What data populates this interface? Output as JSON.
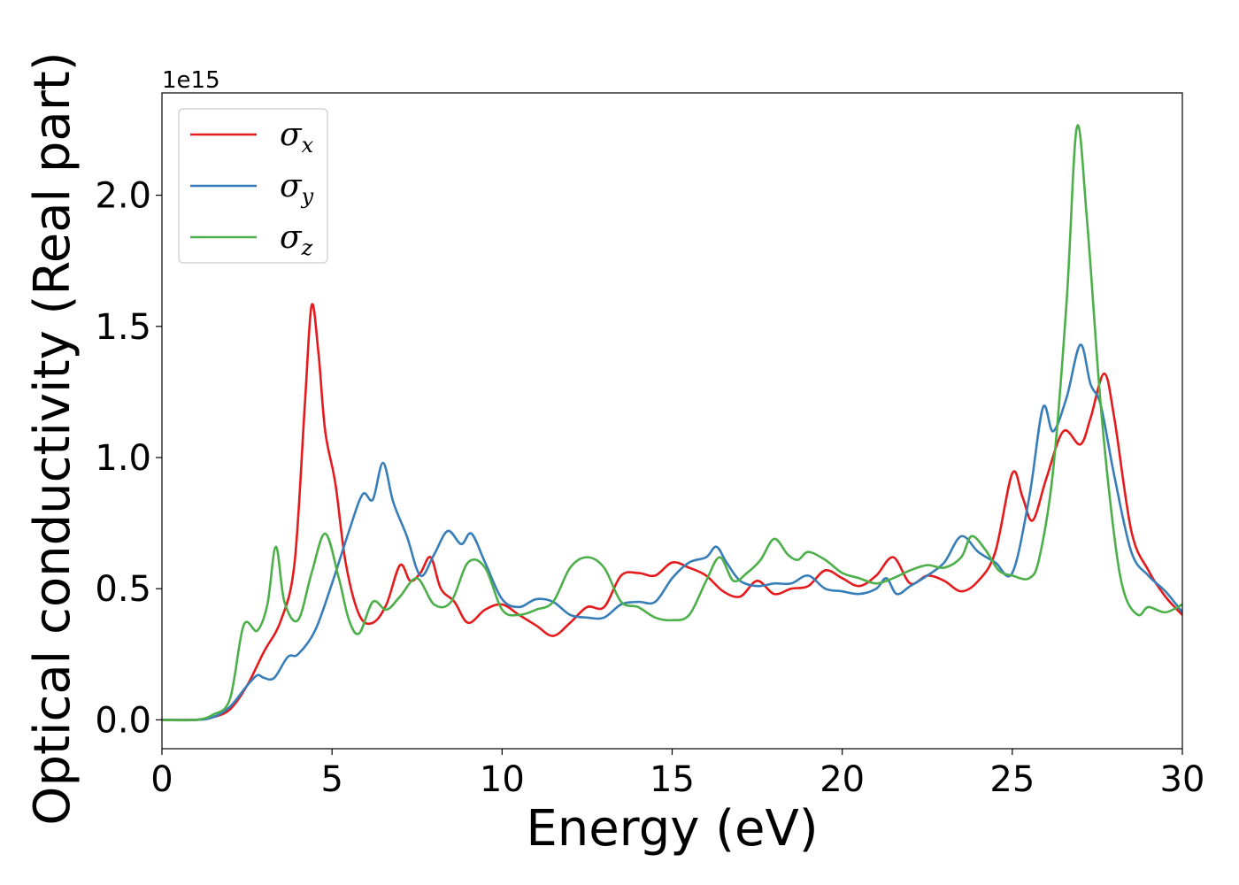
{
  "chart_data": {
    "type": "line",
    "title": "",
    "xlabel": "Energy (eV)",
    "ylabel": "Optical conductivity (Real part)",
    "y_offset_label": "1e15",
    "xlim": [
      0,
      30
    ],
    "ylim": [
      -0.11,
      2.39
    ],
    "x_ticks": [
      0,
      5,
      10,
      15,
      20,
      25,
      30
    ],
    "x_tick_labels": [
      "0",
      "5",
      "10",
      "15",
      "20",
      "25",
      "30"
    ],
    "y_ticks": [
      0.0,
      0.5,
      1.0,
      1.5,
      2.0
    ],
    "y_tick_labels": [
      "0.0",
      "0.5",
      "1.0",
      "1.5",
      "2.0"
    ],
    "grid": false,
    "legend_position": "top-left",
    "series": [
      {
        "name": "σx",
        "legend_base": "σ",
        "legend_sub": "x",
        "color": "#e41a1c",
        "points": [
          [
            0,
            0
          ],
          [
            1,
            0
          ],
          [
            1.5,
            0.01
          ],
          [
            2,
            0.04
          ],
          [
            2.5,
            0.13
          ],
          [
            3,
            0.26
          ],
          [
            3.5,
            0.38
          ],
          [
            3.9,
            0.6
          ],
          [
            4.2,
            1.2
          ],
          [
            4.4,
            1.58
          ],
          [
            4.6,
            1.4
          ],
          [
            4.8,
            1.1
          ],
          [
            5.1,
            0.9
          ],
          [
            5.4,
            0.6
          ],
          [
            5.8,
            0.4
          ],
          [
            6.2,
            0.37
          ],
          [
            6.6,
            0.44
          ],
          [
            7,
            0.59
          ],
          [
            7.3,
            0.53
          ],
          [
            7.6,
            0.56
          ],
          [
            7.9,
            0.62
          ],
          [
            8.2,
            0.5
          ],
          [
            8.6,
            0.45
          ],
          [
            9,
            0.37
          ],
          [
            9.5,
            0.42
          ],
          [
            10,
            0.44
          ],
          [
            10.5,
            0.4
          ],
          [
            11,
            0.36
          ],
          [
            11.5,
            0.32
          ],
          [
            12,
            0.37
          ],
          [
            12.5,
            0.43
          ],
          [
            13,
            0.43
          ],
          [
            13.5,
            0.55
          ],
          [
            14,
            0.56
          ],
          [
            14.5,
            0.55
          ],
          [
            15,
            0.6
          ],
          [
            15.5,
            0.58
          ],
          [
            16,
            0.55
          ],
          [
            16.5,
            0.49
          ],
          [
            17,
            0.47
          ],
          [
            17.5,
            0.53
          ],
          [
            18,
            0.48
          ],
          [
            18.5,
            0.5
          ],
          [
            19,
            0.51
          ],
          [
            19.5,
            0.57
          ],
          [
            20,
            0.54
          ],
          [
            20.5,
            0.51
          ],
          [
            21,
            0.55
          ],
          [
            21.5,
            0.62
          ],
          [
            22,
            0.52
          ],
          [
            22.5,
            0.55
          ],
          [
            23,
            0.53
          ],
          [
            23.5,
            0.49
          ],
          [
            24,
            0.53
          ],
          [
            24.5,
            0.64
          ],
          [
            25,
            0.94
          ],
          [
            25.3,
            0.85
          ],
          [
            25.6,
            0.76
          ],
          [
            26,
            0.92
          ],
          [
            26.5,
            1.1
          ],
          [
            27,
            1.05
          ],
          [
            27.3,
            1.15
          ],
          [
            27.7,
            1.32
          ],
          [
            28,
            1.15
          ],
          [
            28.5,
            0.72
          ],
          [
            29,
            0.57
          ],
          [
            29.5,
            0.47
          ],
          [
            30,
            0.4
          ]
        ]
      },
      {
        "name": "σy",
        "legend_base": "σ",
        "legend_sub": "y",
        "color": "#377eb8",
        "points": [
          [
            0,
            0
          ],
          [
            1,
            0
          ],
          [
            1.5,
            0.01
          ],
          [
            2,
            0.05
          ],
          [
            2.5,
            0.13
          ],
          [
            2.8,
            0.17
          ],
          [
            3,
            0.16
          ],
          [
            3.3,
            0.16
          ],
          [
            3.7,
            0.24
          ],
          [
            4,
            0.25
          ],
          [
            4.5,
            0.34
          ],
          [
            5,
            0.52
          ],
          [
            5.5,
            0.72
          ],
          [
            5.9,
            0.86
          ],
          [
            6.2,
            0.84
          ],
          [
            6.5,
            0.98
          ],
          [
            6.8,
            0.83
          ],
          [
            7.2,
            0.7
          ],
          [
            7.6,
            0.55
          ],
          [
            8,
            0.63
          ],
          [
            8.4,
            0.72
          ],
          [
            8.8,
            0.67
          ],
          [
            9.1,
            0.71
          ],
          [
            9.5,
            0.6
          ],
          [
            10,
            0.46
          ],
          [
            10.5,
            0.43
          ],
          [
            11,
            0.46
          ],
          [
            11.5,
            0.45
          ],
          [
            12,
            0.4
          ],
          [
            12.5,
            0.39
          ],
          [
            13,
            0.39
          ],
          [
            13.5,
            0.44
          ],
          [
            14,
            0.45
          ],
          [
            14.5,
            0.45
          ],
          [
            15,
            0.54
          ],
          [
            15.5,
            0.6
          ],
          [
            16,
            0.62
          ],
          [
            16.3,
            0.66
          ],
          [
            16.6,
            0.6
          ],
          [
            17,
            0.53
          ],
          [
            17.5,
            0.51
          ],
          [
            18,
            0.52
          ],
          [
            18.5,
            0.52
          ],
          [
            19,
            0.55
          ],
          [
            19.5,
            0.5
          ],
          [
            20,
            0.49
          ],
          [
            20.5,
            0.48
          ],
          [
            21,
            0.5
          ],
          [
            21.3,
            0.54
          ],
          [
            21.6,
            0.48
          ],
          [
            22,
            0.51
          ],
          [
            22.5,
            0.55
          ],
          [
            23,
            0.6
          ],
          [
            23.5,
            0.7
          ],
          [
            24,
            0.64
          ],
          [
            24.5,
            0.6
          ],
          [
            25,
            0.56
          ],
          [
            25.5,
            0.85
          ],
          [
            25.9,
            1.19
          ],
          [
            26.2,
            1.1
          ],
          [
            26.6,
            1.23
          ],
          [
            27,
            1.43
          ],
          [
            27.3,
            1.28
          ],
          [
            27.6,
            1.2
          ],
          [
            28,
            0.93
          ],
          [
            28.5,
            0.64
          ],
          [
            29,
            0.55
          ],
          [
            29.5,
            0.49
          ],
          [
            30,
            0.41
          ]
        ]
      },
      {
        "name": "σz",
        "legend_base": "σ",
        "legend_sub": "z",
        "color": "#4daf4a",
        "points": [
          [
            0,
            0
          ],
          [
            1,
            0
          ],
          [
            1.5,
            0.02
          ],
          [
            2,
            0.08
          ],
          [
            2.4,
            0.36
          ],
          [
            2.8,
            0.34
          ],
          [
            3.1,
            0.44
          ],
          [
            3.35,
            0.66
          ],
          [
            3.6,
            0.45
          ],
          [
            4,
            0.38
          ],
          [
            4.4,
            0.56
          ],
          [
            4.8,
            0.71
          ],
          [
            5.2,
            0.54
          ],
          [
            5.5,
            0.38
          ],
          [
            5.8,
            0.33
          ],
          [
            6.2,
            0.45
          ],
          [
            6.6,
            0.42
          ],
          [
            7,
            0.47
          ],
          [
            7.5,
            0.54
          ],
          [
            8,
            0.44
          ],
          [
            8.5,
            0.45
          ],
          [
            9,
            0.6
          ],
          [
            9.5,
            0.58
          ],
          [
            10,
            0.42
          ],
          [
            10.5,
            0.4
          ],
          [
            11,
            0.42
          ],
          [
            11.5,
            0.45
          ],
          [
            12,
            0.58
          ],
          [
            12.5,
            0.62
          ],
          [
            13,
            0.58
          ],
          [
            13.5,
            0.45
          ],
          [
            14,
            0.43
          ],
          [
            14.5,
            0.39
          ],
          [
            15,
            0.38
          ],
          [
            15.5,
            0.4
          ],
          [
            16,
            0.53
          ],
          [
            16.4,
            0.62
          ],
          [
            16.8,
            0.53
          ],
          [
            17.2,
            0.56
          ],
          [
            17.6,
            0.61
          ],
          [
            18,
            0.69
          ],
          [
            18.4,
            0.63
          ],
          [
            18.7,
            0.61
          ],
          [
            19,
            0.64
          ],
          [
            19.5,
            0.61
          ],
          [
            20,
            0.56
          ],
          [
            20.5,
            0.54
          ],
          [
            21,
            0.52
          ],
          [
            21.5,
            0.54
          ],
          [
            22,
            0.57
          ],
          [
            22.5,
            0.59
          ],
          [
            23,
            0.58
          ],
          [
            23.5,
            0.62
          ],
          [
            23.8,
            0.7
          ],
          [
            24.2,
            0.65
          ],
          [
            24.6,
            0.57
          ],
          [
            25,
            0.55
          ],
          [
            25.5,
            0.54
          ],
          [
            25.8,
            0.62
          ],
          [
            26.2,
            0.95
          ],
          [
            26.6,
            1.6
          ],
          [
            26.9,
            2.26
          ],
          [
            27.2,
            1.9
          ],
          [
            27.6,
            1.2
          ],
          [
            28,
            0.7
          ],
          [
            28.3,
            0.48
          ],
          [
            28.7,
            0.4
          ],
          [
            29,
            0.43
          ],
          [
            29.5,
            0.41
          ],
          [
            30,
            0.44
          ]
        ]
      }
    ]
  }
}
